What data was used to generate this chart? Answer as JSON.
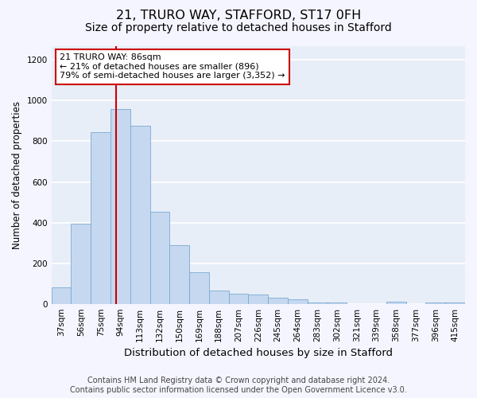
{
  "title": "21, TRURO WAY, STAFFORD, ST17 0FH",
  "subtitle": "Size of property relative to detached houses in Stafford",
  "xlabel": "Distribution of detached houses by size in Stafford",
  "ylabel": "Number of detached properties",
  "categories": [
    "37sqm",
    "56sqm",
    "75sqm",
    "94sqm",
    "113sqm",
    "132sqm",
    "150sqm",
    "169sqm",
    "188sqm",
    "207sqm",
    "226sqm",
    "245sqm",
    "264sqm",
    "283sqm",
    "302sqm",
    "321sqm",
    "339sqm",
    "358sqm",
    "377sqm",
    "396sqm",
    "415sqm"
  ],
  "values": [
    80,
    395,
    845,
    960,
    875,
    455,
    290,
    155,
    65,
    50,
    45,
    30,
    22,
    6,
    6,
    0,
    0,
    10,
    0,
    5,
    5
  ],
  "bar_color": "#c5d8f0",
  "bar_edge_color": "#7aaad0",
  "red_line_x": 2.78,
  "annotation_text": "21 TRURO WAY: 86sqm\n← 21% of detached houses are smaller (896)\n79% of semi-detached houses are larger (3,352) →",
  "annotation_box_color": "#ffffff",
  "annotation_box_edge_color": "#cc0000",
  "ylim": [
    0,
    1270
  ],
  "yticks": [
    0,
    200,
    400,
    600,
    800,
    1000,
    1200
  ],
  "footer_line1": "Contains HM Land Registry data © Crown copyright and database right 2024.",
  "footer_line2": "Contains public sector information licensed under the Open Government Licence v3.0.",
  "background_color": "#e8eef8",
  "fig_background_color": "#f5f5ff",
  "grid_color": "#ffffff",
  "title_fontsize": 11.5,
  "subtitle_fontsize": 10,
  "xlabel_fontsize": 9.5,
  "ylabel_fontsize": 8.5,
  "tick_fontsize": 7.5,
  "annotation_fontsize": 8,
  "footer_fontsize": 7
}
